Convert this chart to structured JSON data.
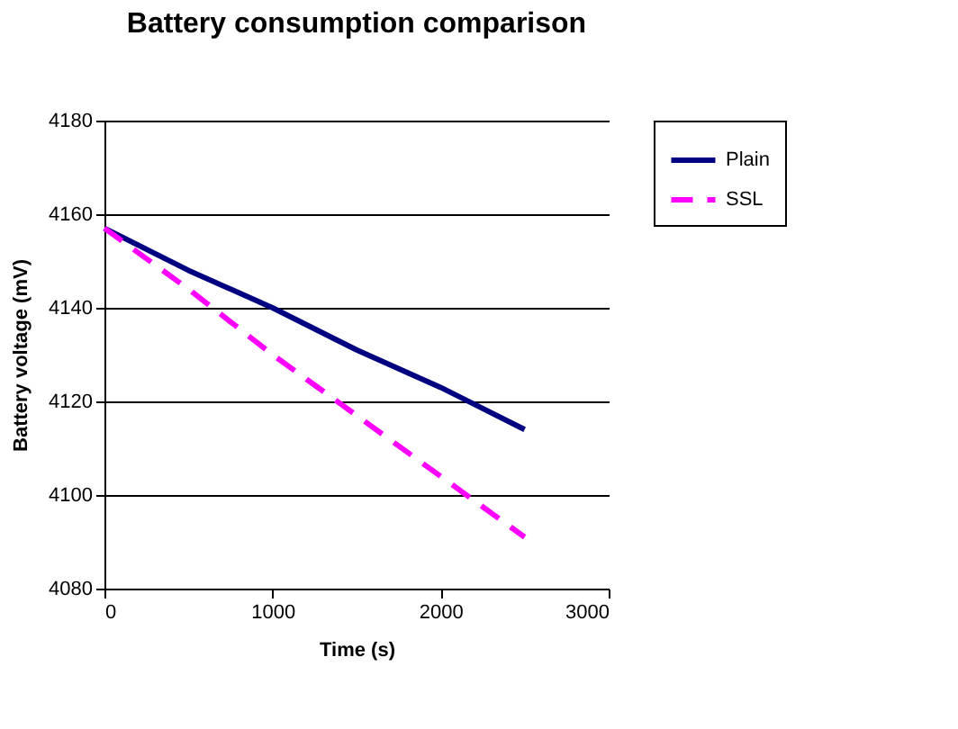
{
  "chart_data": {
    "type": "line",
    "title": "Battery consumption comparison",
    "xlabel": "Time (s)",
    "ylabel": "Battery voltage (mV)",
    "x": [
      0,
      500,
      1000,
      1500,
      2000,
      2500
    ],
    "series": [
      {
        "name": "Plain",
        "color": "#000080",
        "line_style": "solid",
        "values": [
          4157,
          4148,
          4140,
          4131,
          4123,
          4114
        ]
      },
      {
        "name": "SSL",
        "color": "#ff00ff",
        "line_style": "dashed",
        "values": [
          4157,
          4144,
          4130,
          4117,
          4104,
          4091
        ]
      }
    ],
    "xlim": [
      0,
      3000
    ],
    "xticks": [
      0,
      1000,
      2000,
      3000
    ],
    "ylim": [
      4080,
      4180
    ],
    "yticks": [
      4080,
      4100,
      4120,
      4140,
      4160,
      4180
    ],
    "grid": "y",
    "legend": "right",
    "marker": "none"
  }
}
